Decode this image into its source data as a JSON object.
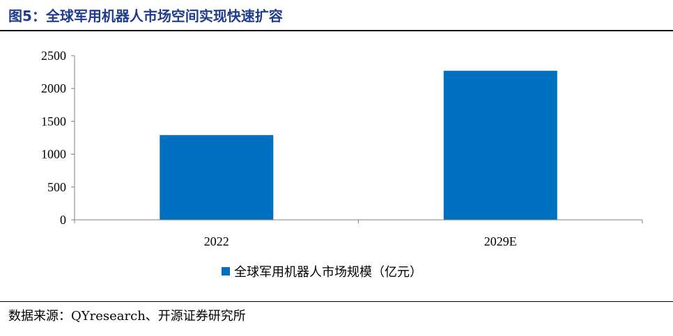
{
  "figure": {
    "title": "图5：全球军用机器人市场空间实现快速扩容",
    "source": "数据来源：QYresearch、开源证券研究所"
  },
  "colors": {
    "title": "#1f3d8c",
    "bar": "#0070c0",
    "axis": "#808080",
    "text": "#000000"
  },
  "chart_data": {
    "type": "bar",
    "title": "",
    "xlabel": "",
    "ylabel": "",
    "categories": [
      "2022",
      "2029E"
    ],
    "series": [
      {
        "name": "全球军用机器人市场规模（亿元）",
        "values": [
          1290,
          2270
        ]
      }
    ],
    "ylim": [
      0,
      2500
    ],
    "yticks": [
      0,
      500,
      1000,
      1500,
      2000,
      2500
    ],
    "grid": false,
    "legend_position": "bottom-center"
  }
}
